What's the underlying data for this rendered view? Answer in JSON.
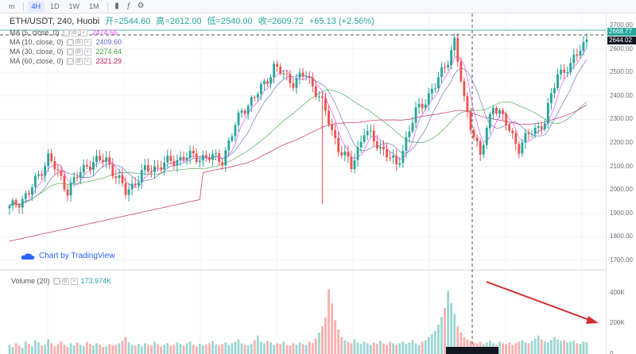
{
  "toolbar": {
    "intervals": [
      {
        "label": "m"
      },
      {
        "label": "4H"
      },
      {
        "label": "1D"
      },
      {
        "label": "1W"
      },
      {
        "label": "1M"
      }
    ],
    "icons": [
      "candles-icon",
      "indicators-icon",
      "settings-icon"
    ]
  },
  "legend": {
    "symbol": "ETH/USDT, 240, Huobi",
    "open_label": "开=2544.60",
    "high_label": "高=2612.00",
    "low_label": "低=2540.00",
    "close_label": "收=2609.72",
    "change": "+65.13 (+2.56%)",
    "ma": [
      {
        "label": "MA (5, close, 0)",
        "value": "2474.55",
        "color": "#e040fb"
      },
      {
        "label": "MA (10, close, 0)",
        "value": "2409.60",
        "color": "#5c6bc0"
      },
      {
        "label": "MA (30, close, 0)",
        "value": "2274.64",
        "color": "#43a047"
      },
      {
        "label": "MA (60, close, 0)",
        "value": "2321.29",
        "color": "#c2185b"
      }
    ]
  },
  "volume_legend": {
    "label": "Volume (20)",
    "value": "173.974K"
  },
  "logo": {
    "text": "Chart by TradingView"
  },
  "price_tags": {
    "top": "2668.77",
    "second": "2644.02"
  },
  "colors": {
    "up": "#26a69a",
    "down": "#ef5350",
    "arrow": "#d32f2f"
  },
  "chart_data": {
    "type": "candlestick",
    "price_axis": {
      "ticks": [
        "2700.00",
        "2600.00",
        "2500.00",
        "2400.00",
        "2300.00",
        "2200.00",
        "2100.00",
        "2000.00",
        "1900.00",
        "1800.00",
        "1700.00"
      ],
      "ylim": [
        1670,
        2730
      ]
    },
    "volume_axis": {
      "ticks": [
        "400K",
        "200K",
        "0"
      ],
      "ylim": [
        0,
        480
      ]
    },
    "anchors": [
      {
        "i": 0,
        "c": 1920
      },
      {
        "i": 6,
        "c": 1985
      },
      {
        "i": 12,
        "c": 2140
      },
      {
        "i": 18,
        "c": 2000
      },
      {
        "i": 24,
        "c": 2110
      },
      {
        "i": 30,
        "c": 2130
      },
      {
        "i": 36,
        "c": 1990
      },
      {
        "i": 42,
        "c": 2080
      },
      {
        "i": 48,
        "c": 2110
      },
      {
        "i": 54,
        "c": 2140
      },
      {
        "i": 60,
        "c": 2140
      },
      {
        "i": 66,
        "c": 2130
      },
      {
        "i": 72,
        "c": 2340
      },
      {
        "i": 76,
        "c": 2390
      },
      {
        "i": 82,
        "c": 2520
      },
      {
        "i": 88,
        "c": 2460
      },
      {
        "i": 92,
        "c": 2490
      },
      {
        "i": 96,
        "c": 2400
      },
      {
        "i": 102,
        "c": 2180
      },
      {
        "i": 106,
        "c": 2100
      },
      {
        "i": 110,
        "c": 2250
      },
      {
        "i": 116,
        "c": 2170
      },
      {
        "i": 120,
        "c": 2100
      },
      {
        "i": 126,
        "c": 2330
      },
      {
        "i": 132,
        "c": 2440
      },
      {
        "i": 136,
        "c": 2560
      },
      {
        "i": 138,
        "c": 2630
      },
      {
        "i": 141,
        "c": 2380
      },
      {
        "i": 146,
        "c": 2140
      },
      {
        "i": 150,
        "c": 2370
      },
      {
        "i": 154,
        "c": 2280
      },
      {
        "i": 158,
        "c": 2180
      },
      {
        "i": 162,
        "c": 2250
      },
      {
        "i": 166,
        "c": 2290
      },
      {
        "i": 170,
        "c": 2500
      },
      {
        "i": 174,
        "c": 2520
      },
      {
        "i": 177,
        "c": 2610
      },
      {
        "i": 179,
        "c": 2640
      }
    ],
    "bar_count": 180,
    "volumes_k": [
      60,
      45,
      70,
      55,
      40,
      80,
      65,
      50,
      90,
      75,
      55,
      60,
      95,
      70,
      50,
      65,
      85,
      60,
      45,
      70,
      55,
      75,
      60,
      50,
      80,
      65,
      55,
      70,
      60,
      45,
      50,
      65,
      55,
      60,
      70,
      85,
      110,
      75,
      60,
      55,
      65,
      50,
      70,
      60,
      55,
      80,
      65,
      50,
      60,
      70,
      55,
      60,
      75,
      65,
      55,
      70,
      80,
      60,
      50,
      65,
      55,
      60,
      70,
      85,
      60,
      55,
      65,
      75,
      60,
      70,
      80,
      95,
      70,
      60,
      55,
      65,
      90,
      120,
      80,
      70,
      85,
      75,
      60,
      70,
      65,
      80,
      60,
      55,
      70,
      60,
      75,
      65,
      60,
      80,
      70,
      100,
      140,
      180,
      240,
      420,
      330,
      220,
      160,
      110,
      90,
      80,
      70,
      95,
      75,
      65,
      80,
      70,
      60,
      75,
      65,
      85,
      70,
      60,
      80,
      70,
      60,
      70,
      80,
      65,
      75,
      90,
      70,
      60,
      80,
      90,
      110,
      130,
      150,
      190,
      240,
      300,
      410,
      330,
      260,
      180,
      140,
      110,
      95,
      85,
      75,
      70,
      80,
      65,
      75,
      85,
      70,
      60,
      80,
      70,
      65,
      75,
      60,
      70,
      80,
      90,
      75,
      70,
      85,
      100,
      120,
      95,
      80,
      75,
      90,
      110,
      95,
      85,
      90,
      75,
      80,
      85,
      70,
      65,
      80,
      75
    ]
  }
}
